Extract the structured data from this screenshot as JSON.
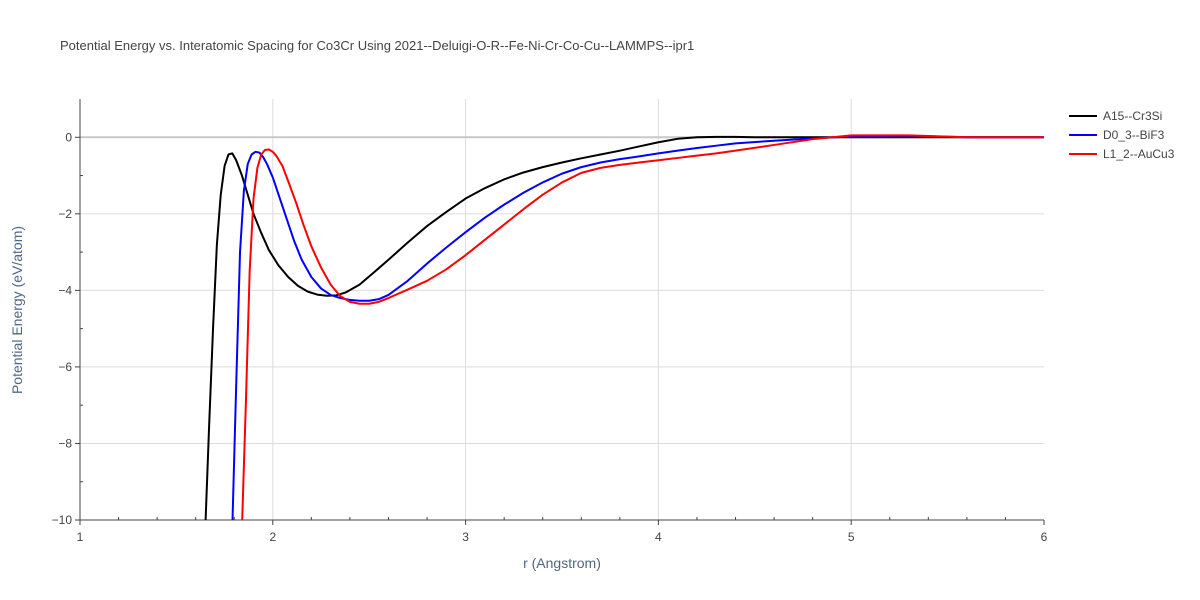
{
  "chart_data": {
    "type": "line",
    "title": "Potential Energy vs. Interatomic Spacing for Co3Cr Using 2021--Deluigi-O-R--Fe-Ni-Cr-Co-Cu--LAMMPS--ipr1",
    "xlabel": "r (Angstrom)",
    "ylabel": "Potential Energy (eV/atom)",
    "xlim": [
      1,
      6
    ],
    "ylim": [
      -10,
      1
    ],
    "xticks": [
      1,
      2,
      3,
      4,
      5,
      6
    ],
    "yticks": [
      0,
      -2,
      -4,
      -6,
      -8,
      -10
    ],
    "xtick_labels": [
      "1",
      "2",
      "3",
      "4",
      "5",
      "6"
    ],
    "ytick_labels": [
      "0",
      "−2",
      "−4",
      "−6",
      "−8",
      "−10"
    ],
    "grid": true,
    "legend_position": "top-right",
    "series": [
      {
        "name": "A15--Cr3Si",
        "color": "#000000",
        "x": [
          1.65,
          1.67,
          1.69,
          1.71,
          1.73,
          1.75,
          1.77,
          1.79,
          1.81,
          1.84,
          1.87,
          1.9,
          1.94,
          1.98,
          2.03,
          2.08,
          2.13,
          2.18,
          2.23,
          2.28,
          2.33,
          2.38,
          2.45,
          2.52,
          2.6,
          2.7,
          2.8,
          2.9,
          3.0,
          3.1,
          3.2,
          3.3,
          3.4,
          3.5,
          3.6,
          3.7,
          3.8,
          3.9,
          4.0,
          4.1,
          4.2,
          4.3,
          4.4,
          4.5,
          4.6,
          4.8,
          5.0,
          5.5,
          6.0
        ],
        "y": [
          -10.2,
          -7.5,
          -5.0,
          -2.8,
          -1.5,
          -0.75,
          -0.45,
          -0.42,
          -0.6,
          -1.0,
          -1.5,
          -2.0,
          -2.5,
          -2.95,
          -3.35,
          -3.65,
          -3.88,
          -4.03,
          -4.11,
          -4.14,
          -4.13,
          -4.05,
          -3.85,
          -3.55,
          -3.2,
          -2.75,
          -2.32,
          -1.95,
          -1.6,
          -1.33,
          -1.1,
          -0.92,
          -0.78,
          -0.66,
          -0.55,
          -0.45,
          -0.35,
          -0.24,
          -0.13,
          -0.04,
          0.0,
          0.01,
          0.01,
          0.0,
          0.0,
          0.0,
          0.0,
          0.0,
          0.0
        ]
      },
      {
        "name": "D0_3--BiF3",
        "color": "#0000ff",
        "x": [
          1.79,
          1.81,
          1.83,
          1.85,
          1.87,
          1.89,
          1.91,
          1.93,
          1.95,
          1.97,
          2.0,
          2.03,
          2.07,
          2.11,
          2.15,
          2.2,
          2.25,
          2.3,
          2.35,
          2.4,
          2.45,
          2.5,
          2.55,
          2.6,
          2.7,
          2.8,
          2.9,
          3.0,
          3.1,
          3.2,
          3.3,
          3.4,
          3.5,
          3.6,
          3.7,
          3.8,
          3.9,
          4.0,
          4.1,
          4.2,
          4.3,
          4.4,
          4.6,
          4.8,
          5.0,
          5.3,
          5.6,
          6.0
        ],
        "y": [
          -10.2,
          -6.5,
          -3.0,
          -1.4,
          -0.7,
          -0.45,
          -0.38,
          -0.4,
          -0.52,
          -0.7,
          -1.05,
          -1.5,
          -2.1,
          -2.7,
          -3.2,
          -3.65,
          -3.95,
          -4.12,
          -4.2,
          -4.25,
          -4.27,
          -4.27,
          -4.23,
          -4.12,
          -3.75,
          -3.3,
          -2.88,
          -2.48,
          -2.1,
          -1.76,
          -1.45,
          -1.18,
          -0.95,
          -0.78,
          -0.66,
          -0.57,
          -0.5,
          -0.42,
          -0.35,
          -0.28,
          -0.22,
          -0.16,
          -0.09,
          -0.03,
          0.02,
          0.04,
          0.0,
          0.0
        ]
      },
      {
        "name": "L1_2--AuCu3",
        "color": "#ff0000",
        "x": [
          1.84,
          1.86,
          1.88,
          1.9,
          1.92,
          1.94,
          1.96,
          1.98,
          2.0,
          2.02,
          2.05,
          2.08,
          2.12,
          2.16,
          2.2,
          2.25,
          2.3,
          2.35,
          2.4,
          2.45,
          2.5,
          2.55,
          2.6,
          2.7,
          2.8,
          2.9,
          3.0,
          3.1,
          3.2,
          3.3,
          3.4,
          3.5,
          3.6,
          3.7,
          3.8,
          3.9,
          4.0,
          4.1,
          4.2,
          4.3,
          4.4,
          4.6,
          4.8,
          5.0,
          5.3,
          5.6,
          6.0
        ],
        "y": [
          -10.2,
          -7.0,
          -3.5,
          -1.6,
          -0.8,
          -0.45,
          -0.33,
          -0.32,
          -0.38,
          -0.5,
          -0.75,
          -1.15,
          -1.7,
          -2.3,
          -2.85,
          -3.4,
          -3.85,
          -4.15,
          -4.3,
          -4.35,
          -4.35,
          -4.3,
          -4.2,
          -3.98,
          -3.75,
          -3.45,
          -3.08,
          -2.68,
          -2.28,
          -1.88,
          -1.5,
          -1.18,
          -0.93,
          -0.8,
          -0.72,
          -0.66,
          -0.6,
          -0.54,
          -0.48,
          -0.42,
          -0.35,
          -0.2,
          -0.05,
          0.05,
          0.05,
          0.0,
          0.0
        ]
      }
    ]
  }
}
